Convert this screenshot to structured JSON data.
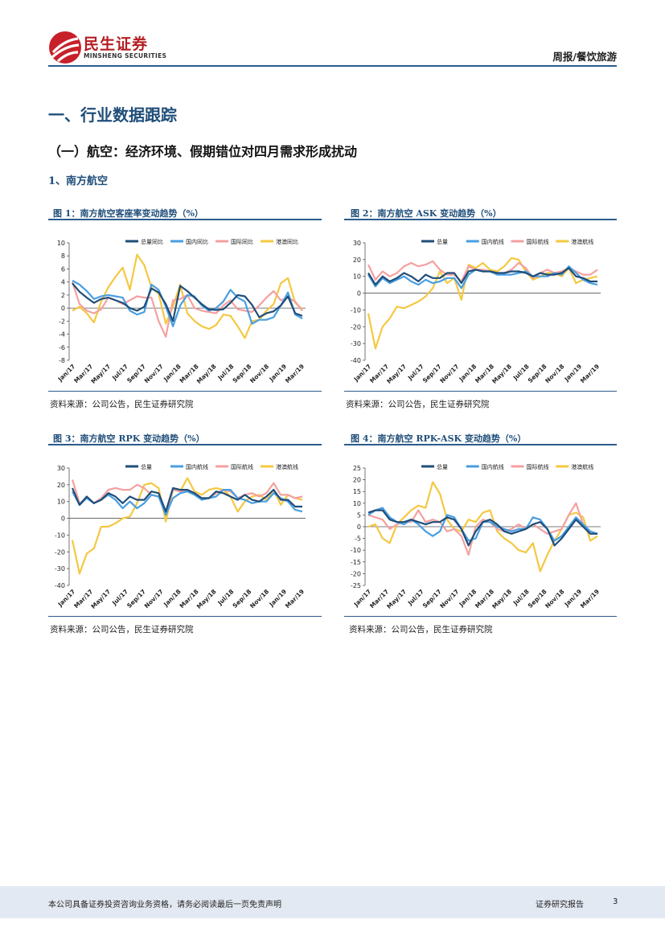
{
  "header": {
    "logo_cn": "民生证券",
    "logo_en": "MINSHENG SECURITIES",
    "category": "周报/餐饮旅游"
  },
  "section": {
    "h1": "一、行业数据跟踪",
    "h2": "（一）航空：经济环境、假期错位对四月需求形成扰动",
    "h3": "1、南方航空"
  },
  "figures": [
    {
      "title": "图 1：南方航空客座率变动趋势（%）",
      "source": "资料来源：公司公告，民生证券研究院"
    },
    {
      "title": "图 2：南方航空 ASK 变动趋势（%）",
      "source": "资料来源：公司公告，民生证券研究院"
    },
    {
      "title": "图 3：南方航空 RPK 变动趋势（%）",
      "source": "资料来源：公司公告，民生证券研究院"
    },
    {
      "title": "图 4：南方航空 RPK-ASK 变动趋势（%）",
      "source": "资料来源：公司公告，民生证券研究院"
    }
  ],
  "footer": {
    "disclaimer": "本公司具备证券投资咨询业务资格，请务必阅读最后一页免责声明",
    "report_type": "证券研究报告",
    "page": "3"
  },
  "colors": {
    "s1": "#1f4e79",
    "s2": "#4a9ee0",
    "s3": "#f4a0a0",
    "s4": "#f5c842"
  },
  "chart_data": [
    {
      "type": "line",
      "x_tick_labels": [
        "Jan/17",
        "Mar/17",
        "May/17",
        "Jul/17",
        "Sep/17",
        "Nov/17",
        "Jan/18",
        "Mar/18",
        "May/18",
        "Jul/18",
        "Sep/18",
        "Nov/18",
        "Jan/19",
        "Mar/19"
      ],
      "ylim": [
        -8,
        10
      ],
      "yticks": [
        10,
        8,
        6,
        4,
        2,
        0,
        -2,
        -4,
        -6,
        -8
      ],
      "series": [
        {
          "name": "总量同比",
          "values": [
            3.8,
            2.5,
            1.6,
            0.8,
            1.4,
            1.6,
            1.2,
            0.8,
            0.0,
            -0.4,
            0.2,
            3.0,
            2.4,
            0.6,
            -2.0,
            3.4,
            2.6,
            1.6,
            0.6,
            -0.2,
            -0.3,
            -0.2,
            0.8,
            2.0,
            1.8,
            0.5,
            -1.4,
            -0.8,
            -0.5,
            0.4,
            1.8,
            -0.8,
            -1.2
          ]
        },
        {
          "name": "国内同比",
          "values": [
            4.2,
            3.6,
            2.6,
            1.4,
            1.8,
            2.0,
            1.8,
            1.6,
            -0.4,
            -1.0,
            -0.6,
            3.6,
            2.8,
            0.2,
            -2.8,
            0.4,
            2.0,
            1.8,
            0.4,
            -0.4,
            0.0,
            1.0,
            2.8,
            1.6,
            1.0,
            -2.4,
            -1.8,
            -1.8,
            -1.4,
            0.4,
            2.4,
            -1.0,
            -1.6
          ]
        },
        {
          "name": "国际同比",
          "values": [
            4.0,
            0.6,
            -0.4,
            -0.8,
            -0.2,
            1.6,
            1.2,
            0.6,
            1.2,
            1.8,
            1.6,
            1.6,
            -2.0,
            -4.4,
            1.2,
            1.4,
            2.0,
            0.0,
            -0.4,
            -0.6,
            -0.8,
            0.4,
            1.2,
            -0.2,
            -0.4,
            -0.6,
            0.4,
            1.6,
            2.6,
            1.2,
            1.6,
            1.0,
            -0.4
          ]
        },
        {
          "name": "港澳同比",
          "values": [
            -0.4,
            0.2,
            -0.8,
            -2.2,
            1.0,
            3.2,
            4.8,
            6.2,
            2.8,
            8.2,
            6.6,
            3.2,
            2.2,
            -2.4,
            0.2,
            3.6,
            -0.8,
            -2.0,
            -2.8,
            -3.2,
            -2.6,
            -1.0,
            -1.2,
            -2.8,
            -4.6,
            -2.0,
            -1.8,
            -0.4,
            0.6,
            3.8,
            4.6,
            0.8,
            -0.2
          ]
        }
      ]
    },
    {
      "type": "line",
      "x_tick_labels": [
        "Jan/17",
        "Mar/17",
        "May/17",
        "Jul/17",
        "Sep/17",
        "Nov/17",
        "Jan/18",
        "Mar/18",
        "May/18",
        "Jul/18",
        "Sep/18",
        "Nov/18",
        "Jan/19",
        "Mar/19"
      ],
      "ylim": [
        -40,
        30
      ],
      "yticks": [
        30,
        20,
        10,
        0,
        -10,
        -20,
        -30,
        -40
      ],
      "series": [
        {
          "name": "总量",
          "values": [
            12,
            5,
            10,
            7,
            9,
            12,
            10,
            7,
            11,
            9,
            9,
            12,
            12,
            6,
            13,
            14,
            13,
            13,
            12,
            12,
            13,
            13,
            12,
            10,
            12,
            11,
            11,
            12,
            15,
            10,
            9,
            7,
            7
          ]
        },
        {
          "name": "国内航线",
          "values": [
            11,
            4,
            9,
            6,
            8,
            10,
            7,
            5,
            8,
            6,
            7,
            9,
            9,
            3,
            11,
            14,
            13,
            13,
            11,
            11,
            11,
            12,
            13,
            10,
            10,
            10,
            12,
            11,
            16,
            12,
            8,
            6,
            5
          ]
        },
        {
          "name": "国际航线",
          "values": [
            17,
            8,
            13,
            10,
            12,
            16,
            18,
            16,
            17,
            19,
            14,
            11,
            11,
            7,
            16,
            14,
            14,
            13,
            12,
            12,
            14,
            18,
            15,
            9,
            12,
            14,
            12,
            13,
            15,
            13,
            11,
            11,
            14
          ]
        },
        {
          "name": "港澳航线",
          "values": [
            -12,
            -33,
            -20,
            -15,
            -8,
            -9,
            -7,
            -5,
            -2,
            3,
            13,
            6,
            9,
            -4,
            17,
            15,
            18,
            14,
            13,
            16,
            21,
            20,
            13,
            8,
            10,
            12,
            12,
            10,
            15,
            6,
            8,
            9,
            10
          ]
        }
      ]
    },
    {
      "type": "line",
      "x_tick_labels": [
        "Jan/17",
        "Mar/17",
        "May/17",
        "Jul/17",
        "Sep/17",
        "Nov/17",
        "Jan/18",
        "Mar/18",
        "May/18",
        "Jul/18",
        "Sep/18",
        "Nov/18",
        "Jan/19",
        "Mar/19"
      ],
      "ylim": [
        -40,
        30
      ],
      "yticks": [
        30,
        20,
        10,
        0,
        -10,
        -20,
        -30,
        -40
      ],
      "series": [
        {
          "name": "总量",
          "values": [
            18,
            8,
            13,
            9,
            11,
            15,
            13,
            9,
            13,
            11,
            11,
            16,
            15,
            4,
            18,
            17,
            17,
            15,
            12,
            12,
            16,
            15,
            13,
            11,
            14,
            11,
            10,
            13,
            17,
            11,
            11,
            7,
            7
          ]
        },
        {
          "name": "国内航线",
          "values": [
            16,
            8,
            12,
            9,
            11,
            14,
            11,
            6,
            10,
            6,
            9,
            14,
            13,
            2,
            12,
            15,
            16,
            14,
            11,
            12,
            13,
            17,
            17,
            12,
            11,
            9,
            10,
            10,
            15,
            12,
            10,
            5,
            4
          ]
        },
        {
          "name": "国际航线",
          "values": [
            23,
            9,
            12,
            9,
            12,
            17,
            18,
            17,
            17,
            20,
            18,
            14,
            13,
            3,
            17,
            16,
            17,
            14,
            12,
            12,
            15,
            17,
            16,
            12,
            14,
            15,
            13,
            15,
            21,
            14,
            14,
            12,
            13
          ]
        },
        {
          "name": "港澳航线",
          "values": [
            -13,
            -33,
            -21,
            -18,
            -5,
            -5,
            -3,
            0,
            1,
            9,
            20,
            21,
            18,
            -2,
            17,
            16,
            24,
            16,
            14,
            17,
            18,
            17,
            13,
            4,
            10,
            13,
            14,
            11,
            17,
            8,
            14,
            12,
            11
          ]
        }
      ]
    },
    {
      "type": "line",
      "x_tick_labels": [
        "Jan/17",
        "Mar/17",
        "May/17",
        "Jul/17",
        "Sep/17",
        "Nov/17",
        "Jan/18",
        "Mar/18",
        "May/18",
        "Jul/18",
        "Sep/18",
        "Nov/18",
        "Jan/19",
        "Mar/19"
      ],
      "ylim": [
        -25,
        25
      ],
      "yticks": [
        25,
        20,
        15,
        10,
        5,
        0,
        -5,
        -10,
        -15,
        -20,
        -25
      ],
      "series": [
        {
          "name": "总量",
          "values": [
            6,
            7,
            7,
            3,
            2,
            2,
            3,
            2,
            1,
            2,
            2,
            4,
            3,
            -1,
            -8,
            -2,
            2,
            3,
            1,
            -2,
            -3,
            -2,
            -1,
            1,
            2,
            -1,
            -8,
            -5,
            -1,
            3,
            0,
            -3,
            -3
          ]
        },
        {
          "name": "国内航线",
          "values": [
            5,
            7,
            8,
            4,
            2,
            1,
            3,
            1,
            -2,
            -4,
            -2,
            5,
            4,
            -1,
            -6,
            -5,
            2,
            2,
            0,
            -1,
            -2,
            -1,
            -1,
            4,
            3,
            -1,
            -6,
            -4,
            0,
            4,
            1,
            -2,
            -3
          ]
        },
        {
          "name": "国际航线",
          "values": [
            5,
            4,
            3,
            -1,
            1,
            2,
            2,
            7,
            2,
            3,
            2,
            -2,
            -1,
            -4,
            -12,
            0,
            3,
            2,
            -1,
            -2,
            -1,
            1,
            -1,
            1,
            -1,
            -3,
            -2,
            -1,
            5,
            10,
            1,
            -2,
            -3
          ]
        },
        {
          "name": "港澳航线",
          "values": [
            0,
            1,
            -5,
            -7,
            1,
            4,
            7,
            9,
            8,
            19,
            14,
            3,
            -1,
            -2,
            3,
            2,
            6,
            7,
            -2,
            -5,
            -7,
            -10,
            -11,
            -7,
            -19,
            -12,
            -6,
            -1,
            5,
            6,
            4,
            -6,
            -4
          ]
        }
      ]
    }
  ]
}
